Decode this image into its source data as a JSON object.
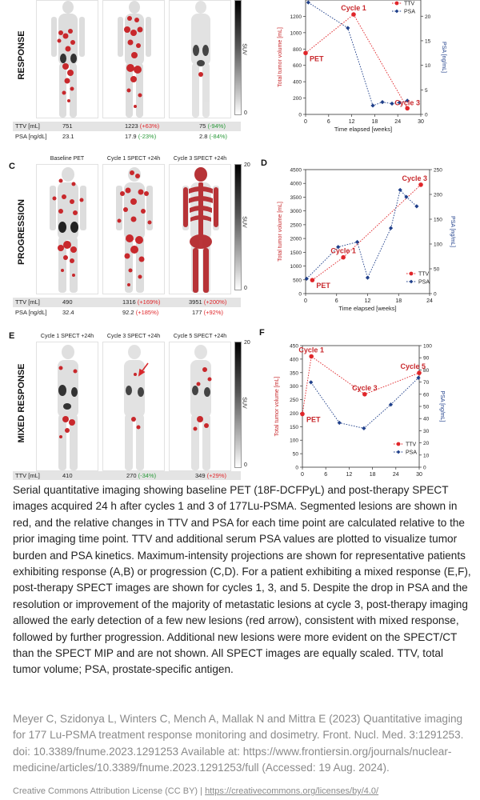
{
  "figure": {
    "rows": [
      {
        "letter_left": "",
        "letter_right": "",
        "label": "RESPONSE",
        "image_titles": [
          "",
          "",
          ""
        ],
        "colorbar": {
          "max": "",
          "min": "0",
          "unit": "SUV"
        },
        "table": {
          "ttv_label": "TTV [mL]",
          "psa_label": "PSA [ng/dL]",
          "ttv": [
            {
              "value": "751",
              "change": ""
            },
            {
              "value": "1223",
              "change": "(+63%)"
            },
            {
              "value": "75",
              "change": "(-94%)"
            }
          ],
          "psa": [
            {
              "value": "23.1",
              "change": ""
            },
            {
              "value": "17.9",
              "change": "(-23%)"
            },
            {
              "value": "2.8",
              "change": "(-84%)"
            }
          ]
        }
      },
      {
        "letter_left": "C",
        "letter_right": "D",
        "label": "PROGRESSION",
        "image_titles": [
          "Baseline PET",
          "Cycle 1 SPECT +24h",
          "Cycle 3 SPECT +24h"
        ],
        "colorbar": {
          "max": "20",
          "min": "0",
          "unit": "SUV"
        },
        "table": {
          "ttv_label": "TTV [mL]",
          "psa_label": "PSA [ng/dL]",
          "ttv": [
            {
              "value": "490",
              "change": ""
            },
            {
              "value": "1316",
              "change": "(+169%)"
            },
            {
              "value": "3951",
              "change": "(+200%)"
            }
          ],
          "psa": [
            {
              "value": "32.4",
              "change": ""
            },
            {
              "value": "92.2",
              "change": "(+185%)"
            },
            {
              "value": "177",
              "change": "(+92%)"
            }
          ]
        }
      },
      {
        "letter_left": "E",
        "letter_right": "F",
        "label": "MIXED RESPONSE",
        "image_titles": [
          "Cycle 1 SPECT +24h",
          "Cycle 3 SPECT +24h",
          "Cycle 5 SPECT +24h"
        ],
        "colorbar": {
          "max": "20",
          "min": "0",
          "unit": "SUV"
        },
        "table": {
          "ttv_label": "TTV [mL]",
          "ttv": [
            {
              "value": "410",
              "change": ""
            },
            {
              "value": "270",
              "change": "(-34%)"
            },
            {
              "value": "349",
              "change": "(+29%)"
            }
          ]
        }
      }
    ]
  },
  "chart_data": [
    {
      "type": "line",
      "panel": "B",
      "xlabel": "Time elapsed [weeks]",
      "ylabel": "Total tumor volume [mL]",
      "y2label": "PSA [ng/mL]",
      "xlim": [
        0,
        30
      ],
      "ylim": [
        0,
        1400
      ],
      "y2lim": [
        0,
        23.3
      ],
      "xticks": [
        "0",
        "6",
        "12",
        "18",
        "24",
        "30"
      ],
      "yticks": [
        "0",
        "200",
        "400",
        "600",
        "800",
        "1000",
        "1200"
      ],
      "y2ticks": [
        "0",
        "5",
        "10",
        "15",
        "20"
      ],
      "legend": [
        "TTV",
        "PSA"
      ],
      "legend_position": "top-right",
      "series": [
        {
          "name": "TTV",
          "color": "#e0262a",
          "axis": "left",
          "x": [
            0,
            12.5,
            26.5
          ],
          "y": [
            751,
            1223,
            75
          ]
        },
        {
          "name": "PSA",
          "color": "#1f3f8a",
          "axis": "right",
          "x": [
            0.7,
            11,
            17.5,
            20,
            22.5,
            24.5,
            26.5
          ],
          "y": [
            22.8,
            17.6,
            1.8,
            2.5,
            2.2,
            2.4,
            2.8
          ]
        }
      ],
      "annotations": [
        {
          "text": "PET",
          "x": 0,
          "y": 751
        },
        {
          "text": "Cycle 1",
          "x": 12.5,
          "y": 1223
        },
        {
          "text": "Cycle 3",
          "x": 26.5,
          "y": 75
        }
      ]
    },
    {
      "type": "line",
      "panel": "D",
      "xlabel": "Time elapsed [weeks]",
      "ylabel": "Total tumor volume [mL]",
      "y2label": "PSA [ng/mL]",
      "xlim": [
        0,
        24
      ],
      "ylim": [
        0,
        4500
      ],
      "y2lim": [
        0,
        250
      ],
      "xticks": [
        "0",
        "6",
        "12",
        "18",
        "24"
      ],
      "yticks": [
        "0",
        "500",
        "1000",
        "1500",
        "2000",
        "2500",
        "3000",
        "3500",
        "4000",
        "4500"
      ],
      "y2ticks": [
        "0",
        "50",
        "100",
        "150",
        "200",
        "250"
      ],
      "legend": [
        "TTV",
        "PSA"
      ],
      "legend_position": "bottom-right",
      "series": [
        {
          "name": "TTV",
          "color": "#e0262a",
          "axis": "left",
          "x": [
            1.3,
            7.3,
            22.3
          ],
          "y": [
            490,
            1316,
            3951
          ]
        },
        {
          "name": "PSA",
          "color": "#1f3f8a",
          "axis": "right",
          "x": [
            0.2,
            6.3,
            10,
            12,
            16.5,
            18.3,
            19.5,
            21.5
          ],
          "y": [
            30,
            94,
            104,
            32,
            132,
            209,
            195,
            176
          ]
        }
      ],
      "annotations": [
        {
          "text": "PET",
          "x": 1.3,
          "y": 490
        },
        {
          "text": "Cycle 1",
          "x": 7.3,
          "y": 1316
        },
        {
          "text": "Cycle 3",
          "x": 22.3,
          "y": 3951
        }
      ]
    },
    {
      "type": "line",
      "panel": "F",
      "xlabel": "",
      "ylabel": "Total tumor volume [mL]",
      "y2label": "PSA [ng/mL]",
      "xlim": [
        0,
        30
      ],
      "ylim": [
        0,
        450
      ],
      "y2lim": [
        0,
        100
      ],
      "xticks": [
        "0",
        "6",
        "12",
        "18",
        "24",
        "30"
      ],
      "yticks": [
        "0",
        "50",
        "100",
        "150",
        "200",
        "250",
        "300",
        "350",
        "400",
        "450"
      ],
      "y2ticks": [
        "0",
        "10",
        "20",
        "30",
        "40",
        "50",
        "60",
        "70",
        "80",
        "90",
        "100"
      ],
      "legend": [
        "TTV",
        "PSA"
      ],
      "legend_position": "bottom-right",
      "series": [
        {
          "name": "TTV",
          "color": "#e0262a",
          "axis": "left",
          "x": [
            0,
            2.3,
            16,
            30
          ],
          "y": [
            197,
            410,
            270,
            349
          ]
        },
        {
          "name": "PSA",
          "color": "#1f3f8a",
          "axis": "right",
          "x": [
            2.2,
            9.5,
            15.8,
            22.7,
            29.8
          ],
          "y": [
            69.8,
            36.5,
            32,
            51.5,
            73.5
          ]
        }
      ],
      "annotations": [
        {
          "text": "PET",
          "x": 0,
          "y": 197
        },
        {
          "text": "Cycle 1",
          "x": 2.3,
          "y": 410
        },
        {
          "text": "Cycle 3",
          "x": 16,
          "y": 270
        },
        {
          "text": "Cycle 5",
          "x": 30,
          "y": 349
        }
      ]
    }
  ],
  "caption": {
    "text": "Serial quantitative imaging showing baseline PET (18F-DCFPyL) and post-therapy SPECT images acquired 24 h after cycles 1 and 3 of 177Lu-PSMA. Segmented lesions are shown in red, and the relative changes in TTV and PSA for each time point are calculated relative to the prior imaging time point. TTV and additional serum PSA values are plotted to visualize tumor burden and PSA kinetics. Maximum-intensity projections are shown for representative patients exhibiting response (A,B) or progression (C,D). For a patient exhibiting a mixed response (E,F), post-therapy SPECT images are shown for cycles 1, 3, and 5. Despite the drop in PSA and the resolution or improvement of the majority of metastatic lesions at cycle 3, post-therapy imaging allowed the early detection of a few new lesions (red arrow), consistent with mixed response, followed by further progression. Additional new lesions were more evident on the SPECT/CT than the SPECT MIP and are not shown. All SPECT images are equally scaled. TTV, total tumor volume; PSA, prostate-specific antigen."
  },
  "credit": {
    "text": "Meyer C, Szidonya L, Winters C, Mench A, Mallak N and Mittra E (2023) Quantitative imaging for 177 Lu-PSMA treatment response monitoring and dosimetry. Front. Nucl. Med. 3:1291253. doi: 10.3389/fnume.2023.1291253 Available at: https://www.frontiersin.org/journals/nuclear-medicine/articles/10.3389/fnume.2023.1291253/full (Accessed: 19 Aug. 2024)."
  },
  "license": {
    "prefix": "Creative Commons Attribution License (CC BY) | ",
    "link_text": "https://creativecommons.org/licenses/by/4.0/"
  },
  "colors": {
    "ttv": "#e0262a",
    "psa": "#1f3f8a",
    "lesion": "#c8282c",
    "increase": "#e0262a",
    "decrease": "#2a9a3a"
  }
}
